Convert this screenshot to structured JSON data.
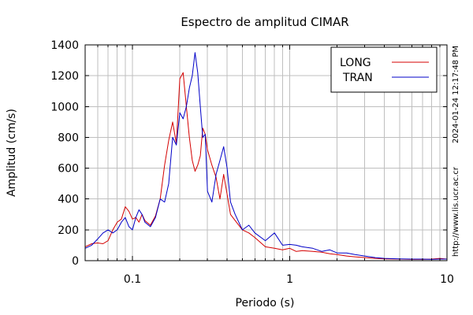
{
  "chart_data": {
    "type": "line",
    "title": "Espectro de amplitud CIMAR",
    "xlabel": "Periodo (s)",
    "ylabel": "Amplitud (cm/s)",
    "xscale": "log",
    "xlim": [
      0.05,
      10
    ],
    "ylim": [
      0,
      1400
    ],
    "xticks": [
      {
        "value": 0.1,
        "label": "0.1"
      },
      {
        "value": 1,
        "label": "1"
      },
      {
        "value": 10,
        "label": "10"
      }
    ],
    "yticks": [
      {
        "value": 0,
        "label": "0"
      },
      {
        "value": 200,
        "label": "200"
      },
      {
        "value": 400,
        "label": "400"
      },
      {
        "value": 600,
        "label": "600"
      },
      {
        "value": 800,
        "label": "800"
      },
      {
        "value": 1000,
        "label": "1000"
      },
      {
        "value": 1200,
        "label": "1200"
      },
      {
        "value": 1400,
        "label": "1400"
      }
    ],
    "grid": true,
    "legend_position": "top-right",
    "series": [
      {
        "name": "LONG",
        "color": "#d40000",
        "x": [
          0.05,
          0.055,
          0.06,
          0.065,
          0.07,
          0.075,
          0.08,
          0.085,
          0.09,
          0.095,
          0.1,
          0.105,
          0.11,
          0.115,
          0.12,
          0.13,
          0.14,
          0.15,
          0.16,
          0.17,
          0.18,
          0.19,
          0.2,
          0.21,
          0.22,
          0.23,
          0.24,
          0.25,
          0.26,
          0.27,
          0.28,
          0.29,
          0.3,
          0.32,
          0.34,
          0.36,
          0.38,
          0.4,
          0.42,
          0.45,
          0.5,
          0.55,
          0.6,
          0.7,
          0.8,
          0.9,
          1.0,
          1.1,
          1.2,
          1.4,
          1.6,
          1.8,
          2.0,
          2.3,
          2.6,
          3.0,
          3.5,
          4,
          5,
          6,
          7,
          8,
          9,
          10
        ],
        "y": [
          90,
          110,
          115,
          110,
          130,
          200,
          250,
          270,
          350,
          320,
          270,
          280,
          250,
          300,
          260,
          230,
          290,
          400,
          620,
          780,
          900,
          760,
          1180,
          1220,
          1000,
          800,
          650,
          580,
          620,
          680,
          860,
          820,
          720,
          620,
          540,
          400,
          560,
          430,
          300,
          260,
          200,
          180,
          150,
          90,
          80,
          70,
          80,
          60,
          65,
          60,
          55,
          45,
          40,
          30,
          25,
          20,
          15,
          12,
          10,
          8,
          8,
          10,
          15,
          10
        ]
      },
      {
        "name": "TRAN",
        "color": "#0000c8",
        "x": [
          0.05,
          0.055,
          0.06,
          0.065,
          0.07,
          0.075,
          0.08,
          0.085,
          0.09,
          0.095,
          0.1,
          0.105,
          0.11,
          0.115,
          0.12,
          0.13,
          0.14,
          0.15,
          0.16,
          0.17,
          0.18,
          0.19,
          0.2,
          0.21,
          0.22,
          0.23,
          0.24,
          0.25,
          0.26,
          0.27,
          0.28,
          0.29,
          0.3,
          0.32,
          0.34,
          0.36,
          0.38,
          0.4,
          0.42,
          0.45,
          0.5,
          0.55,
          0.6,
          0.7,
          0.8,
          0.9,
          1.0,
          1.1,
          1.2,
          1.4,
          1.6,
          1.8,
          2.0,
          2.3,
          2.6,
          3.0,
          3.5,
          4,
          5,
          6,
          7,
          8,
          9,
          10
        ],
        "y": [
          80,
          100,
          140,
          180,
          200,
          180,
          200,
          250,
          280,
          220,
          200,
          280,
          330,
          300,
          250,
          220,
          280,
          400,
          380,
          500,
          800,
          750,
          960,
          920,
          1000,
          1120,
          1200,
          1350,
          1220,
          1000,
          800,
          820,
          450,
          380,
          560,
          650,
          740,
          600,
          380,
          300,
          200,
          230,
          180,
          130,
          180,
          100,
          105,
          100,
          90,
          80,
          60,
          70,
          50,
          50,
          40,
          30,
          20,
          15,
          12,
          10,
          10,
          8,
          10,
          10
        ]
      }
    ]
  },
  "side_labels": {
    "timestamp": "2024-01-24 12:17:48 PM",
    "website": "http://www.lis.ucr.ac.cr"
  }
}
